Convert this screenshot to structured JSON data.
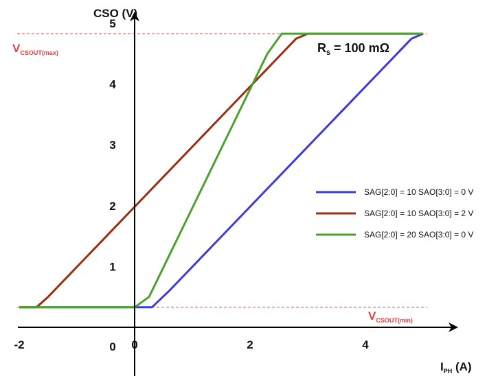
{
  "chart_data": {
    "type": "line",
    "x_axis": {
      "label_main": "I",
      "label_sub": "PH",
      "label_unit": " (A)",
      "range": [
        -2,
        5.1
      ],
      "ticks": [
        -2,
        0,
        2,
        4
      ],
      "tick_labels": [
        "-2",
        "0",
        "2",
        "4"
      ]
    },
    "y_axis": {
      "label": "CSO (V)",
      "range": [
        0,
        5.1
      ],
      "ticks": [
        0,
        1,
        2,
        3,
        4,
        5
      ],
      "tick_labels": [
        "0",
        "1",
        "2",
        "3",
        "4",
        "5"
      ]
    },
    "grid": false,
    "legend_position": "right",
    "reference_lines": [
      {
        "id": "vmax",
        "value": 4.83,
        "main": "V",
        "sub": "CSOUT(max)",
        "color": "#e8413f"
      },
      {
        "id": "vmin",
        "value": 0.33,
        "main": "V",
        "sub": "CSOUT(min)",
        "color": "#e8413f"
      }
    ],
    "annotation": {
      "main": "R",
      "sub": "S",
      "rest": " = 100 mΩ"
    },
    "series": [
      {
        "name": "SAG[2:0] = 10 SAO[3:0] = 0 V",
        "color": "#3a3ae0",
        "x": [
          -2,
          0.3,
          0.6,
          4.8,
          5.0
        ],
        "y": [
          0.33,
          0.33,
          0.6,
          4.75,
          4.83
        ]
      },
      {
        "name": "SAG[2:0] = 10 SAO[3:0] = 2 V",
        "color": "#9c2e10",
        "x": [
          -2,
          -1.7,
          -1.5,
          2.8,
          3.0,
          5.0
        ],
        "y": [
          0.33,
          0.33,
          0.5,
          4.75,
          4.83,
          4.83
        ]
      },
      {
        "name": "SAG[2:0] = 20 SAO[3:0] = 0 V",
        "color": "#4aa12e",
        "x": [
          -2,
          0.0,
          0.25,
          2.3,
          2.55,
          5.0
        ],
        "y": [
          0.33,
          0.33,
          0.5,
          4.5,
          4.83,
          4.83
        ]
      }
    ]
  }
}
